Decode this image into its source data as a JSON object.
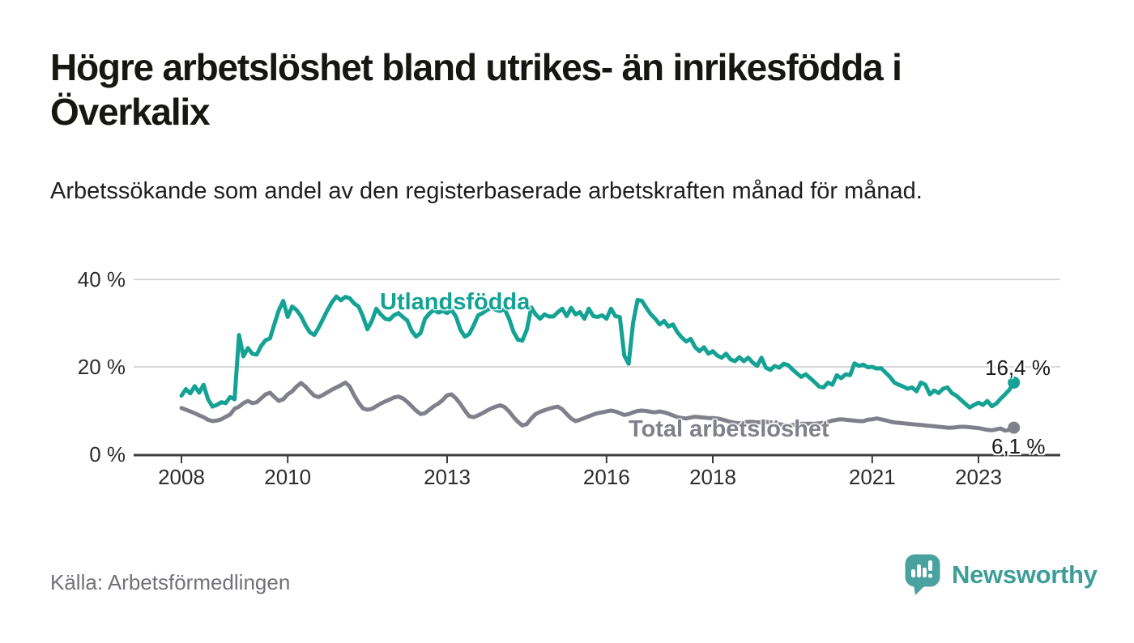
{
  "chart_data": {
    "type": "line",
    "title": "Högre arbetslöshet bland utrikes- än inrikesfödda i Överkalix",
    "subtitle": "Arbetssökande som andel av den registerbaserade arbetskraften månad för månad.",
    "x_unit": "month",
    "x_range": [
      "2008-01",
      "2023-09"
    ],
    "ylim": [
      0,
      42
    ],
    "grid": "horizontal",
    "legend_position": "inline-labels",
    "y_ticks": [
      {
        "value": 40,
        "label": "40 %"
      },
      {
        "value": 20,
        "label": "20 %"
      },
      {
        "value": 0,
        "label": "0 %"
      }
    ],
    "x_ticks": [
      {
        "year": 2008,
        "label": "2008"
      },
      {
        "year": 2010,
        "label": "2010"
      },
      {
        "year": 2013,
        "label": "2013"
      },
      {
        "year": 2016,
        "label": "2016"
      },
      {
        "year": 2018,
        "label": "2018"
      },
      {
        "year": 2021,
        "label": "2021"
      },
      {
        "year": 2023,
        "label": "2023"
      }
    ],
    "series": [
      {
        "name": "Utlandsfödda",
        "color": "#14a294",
        "end_label": "16,4 %",
        "last_value": 16.4,
        "values": [
          13.4,
          14.9,
          13.9,
          15.6,
          14.1,
          15.9,
          12.6,
          10.9,
          11.3,
          11.9,
          11.7,
          13.1,
          12.6,
          27.3,
          22.4,
          24.3,
          23.0,
          22.8,
          24.8,
          26.1,
          26.5,
          29.8,
          33.0,
          35.1,
          31.4,
          33.8,
          33.0,
          31.6,
          29.5,
          27.9,
          27.3,
          29.0,
          31.0,
          33.0,
          34.8,
          36.1,
          35.2,
          36.0,
          35.7,
          34.5,
          33.8,
          31.5,
          28.6,
          30.5,
          33.3,
          32.0,
          31.0,
          30.8,
          31.8,
          32.3,
          31.4,
          30.6,
          28.2,
          26.9,
          27.7,
          31.0,
          32.2,
          33.0,
          32.4,
          32.8,
          32.3,
          33.0,
          31.5,
          28.5,
          26.9,
          27.5,
          29.5,
          31.8,
          32.3,
          33.0,
          33.5,
          33.0,
          32.8,
          33.2,
          31.0,
          28.0,
          26.2,
          26.0,
          28.5,
          33.6,
          32.0,
          31.0,
          32.0,
          31.5,
          31.5,
          32.5,
          33.3,
          31.6,
          33.5,
          32.0,
          32.5,
          31.0,
          33.3,
          31.6,
          31.4,
          31.8,
          31.0,
          33.3,
          31.6,
          31.4,
          22.6,
          20.7,
          30.1,
          35.3,
          35.1,
          33.5,
          32.0,
          31.0,
          29.7,
          30.5,
          29.2,
          29.7,
          27.9,
          26.7,
          25.8,
          26.4,
          24.5,
          23.6,
          24.5,
          23.0,
          23.6,
          22.6,
          22.1,
          23.0,
          21.7,
          21.3,
          22.2,
          21.3,
          22.1,
          21.0,
          20.2,
          22.1,
          19.8,
          19.3,
          20.2,
          19.8,
          20.7,
          20.4,
          19.4,
          18.5,
          17.7,
          18.3,
          17.4,
          16.5,
          15.5,
          15.3,
          16.4,
          15.9,
          18.1,
          17.4,
          18.3,
          18.1,
          20.8,
          20.2,
          20.5,
          19.9,
          20.0,
          19.6,
          19.7,
          18.7,
          17.7,
          16.4,
          15.9,
          15.5,
          15.0,
          15.3,
          14.4,
          16.4,
          15.9,
          13.7,
          14.6,
          14.0,
          15.0,
          15.3,
          14.0,
          13.4,
          12.5,
          11.6,
          10.7,
          11.3,
          11.8,
          11.3,
          12.2,
          11.0,
          11.6,
          12.7,
          13.7,
          14.8,
          16.4
        ]
      },
      {
        "name": "Total arbetslöshet",
        "color": "#80808a",
        "end_label": "6,1 %",
        "last_value": 6.1,
        "values": [
          10.6,
          10.2,
          9.8,
          9.4,
          8.9,
          8.5,
          7.9,
          7.6,
          7.7,
          8.0,
          8.6,
          9.1,
          10.4,
          10.9,
          11.7,
          12.2,
          11.7,
          11.9,
          12.8,
          13.7,
          14.1,
          13.1,
          12.2,
          12.6,
          13.7,
          14.4,
          15.5,
          16.3,
          15.5,
          14.4,
          13.4,
          13.1,
          13.6,
          14.2,
          14.8,
          15.3,
          15.8,
          16.4,
          15.5,
          13.5,
          11.8,
          10.5,
          10.2,
          10.4,
          11.0,
          11.6,
          12.1,
          12.5,
          13.0,
          13.2,
          12.8,
          12.0,
          11.0,
          10.0,
          9.2,
          9.4,
          10.2,
          11.0,
          11.6,
          12.4,
          13.5,
          13.7,
          12.8,
          11.5,
          10.0,
          8.7,
          8.5,
          8.9,
          9.4,
          10.0,
          10.5,
          10.9,
          11.2,
          10.8,
          9.8,
          8.5,
          7.4,
          6.6,
          6.9,
          8.2,
          9.2,
          9.7,
          10.1,
          10.4,
          10.7,
          10.9,
          10.3,
          9.2,
          8.2,
          7.6,
          7.9,
          8.3,
          8.7,
          9.1,
          9.4,
          9.6,
          9.8,
          10.0,
          9.8,
          9.4,
          9.0,
          9.2,
          9.6,
          9.9,
          10.0,
          9.9,
          9.7,
          9.6,
          9.8,
          9.6,
          9.3,
          8.9,
          8.5,
          8.3,
          8.2,
          8.4,
          8.6,
          8.5,
          8.4,
          8.3,
          8.3,
          8.2,
          8.0,
          7.7,
          7.4,
          7.2,
          7.1,
          7.3,
          7.4,
          7.4,
          7.3,
          7.3,
          7.4,
          7.3,
          7.1,
          6.9,
          6.7,
          6.6,
          6.7,
          6.9,
          7.0,
          7.0,
          7.0,
          7.0,
          7.1,
          7.2,
          7.4,
          7.7,
          7.9,
          8.0,
          7.9,
          7.8,
          7.7,
          7.6,
          7.6,
          7.9,
          8.0,
          8.2,
          8.0,
          7.8,
          7.5,
          7.3,
          7.2,
          7.1,
          7.0,
          6.9,
          6.8,
          6.7,
          6.6,
          6.5,
          6.4,
          6.3,
          6.2,
          6.1,
          6.1,
          6.2,
          6.3,
          6.3,
          6.2,
          6.1,
          6.0,
          5.8,
          5.6,
          5.5,
          5.7,
          5.9,
          5.4,
          5.6,
          6.1
        ]
      }
    ]
  },
  "colors": {
    "accent_teal": "#14a294",
    "series_gray": "#80808a",
    "gridline": "#d8d8d8",
    "axis": "#3b3b3b",
    "logo_teal": "#4aa2a0"
  },
  "footer": {
    "source": "Källa: Arbetsförmedlingen",
    "logo_text": "Newsworthy"
  }
}
